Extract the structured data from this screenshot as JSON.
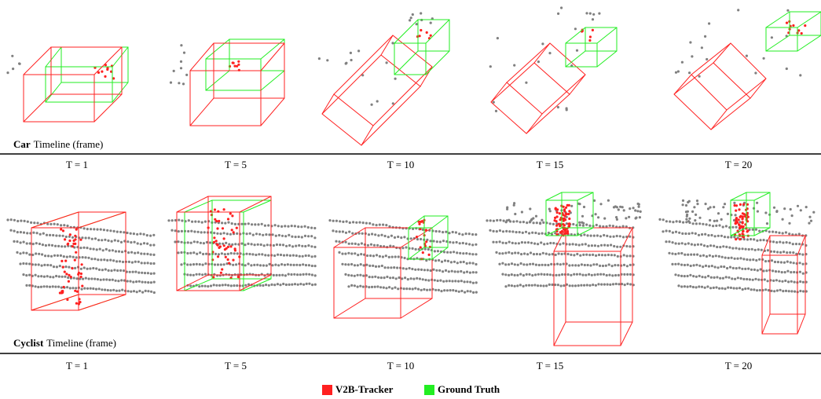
{
  "rows": [
    {
      "label_bold": "Car",
      "label": "Timeline (frame)",
      "frames": [
        "T = 1",
        "T = 5",
        "T = 10",
        "T = 15",
        "T = 20"
      ]
    },
    {
      "label_bold": "Cyclist",
      "label": "Timeline (frame)",
      "frames": [
        "T = 1",
        "T = 5",
        "T = 10",
        "T = 15",
        "T = 20"
      ]
    }
  ],
  "legend": [
    {
      "label": "V2B-Tracker",
      "color": "#ff2020"
    },
    {
      "label": "Ground Truth",
      "color": "#22ee22"
    }
  ]
}
